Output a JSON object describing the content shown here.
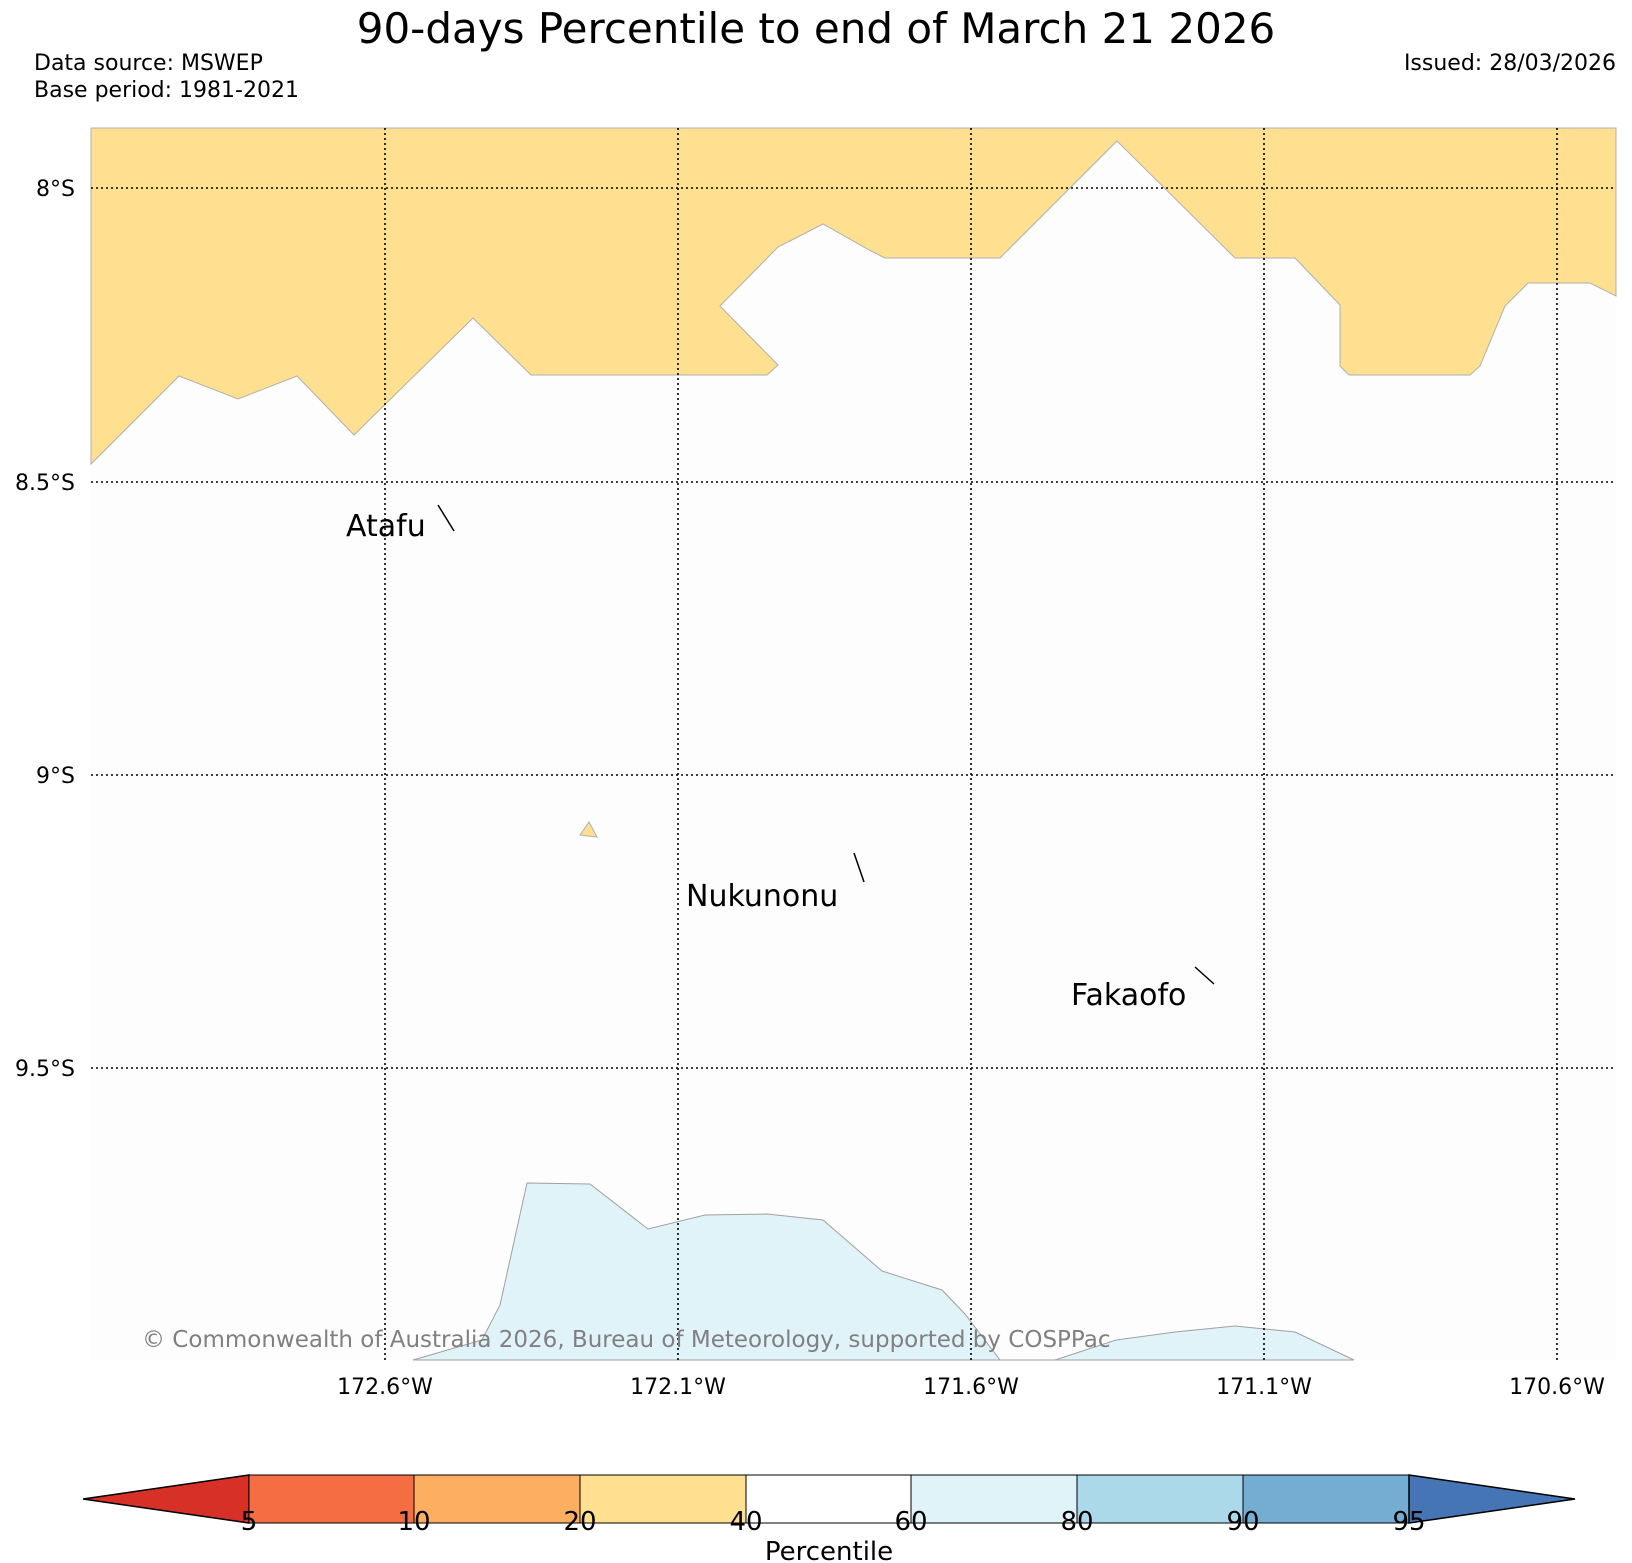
{
  "title": "90-days Percentile to end of March 21 2026",
  "data_source": "Data source: MSWEP",
  "base_period": "Base period: 1981-2021",
  "issued": "Issued: 28/03/2026",
  "map": {
    "latitude_labels": [
      "8°S",
      "8.5°S",
      "9°S",
      "9.5°S"
    ],
    "longitude_labels": [
      "172.6°W",
      "172.1°W",
      "171.6°W",
      "171.1°W",
      "170.6°W"
    ],
    "islands": [
      "Atafu",
      "Nukunonu",
      "Fakaofo"
    ],
    "copyright": "© Commonwealth of Australia 2026, Bureau of Meteorology, supported by COSPPac",
    "category_colors": {
      "20-40": "#fee090",
      "60-80": "#e0f3f8"
    }
  },
  "colorbar": {
    "label": "Percentile",
    "ticks": [
      "5",
      "10",
      "20",
      "40",
      "60",
      "80",
      "90",
      "95"
    ],
    "colors": [
      "#d73027",
      "#f46d43",
      "#fdae61",
      "#fee090",
      "#ffffff",
      "#e0f3f8",
      "#abd9e9",
      "#74add1",
      "#4575b4"
    ]
  }
}
